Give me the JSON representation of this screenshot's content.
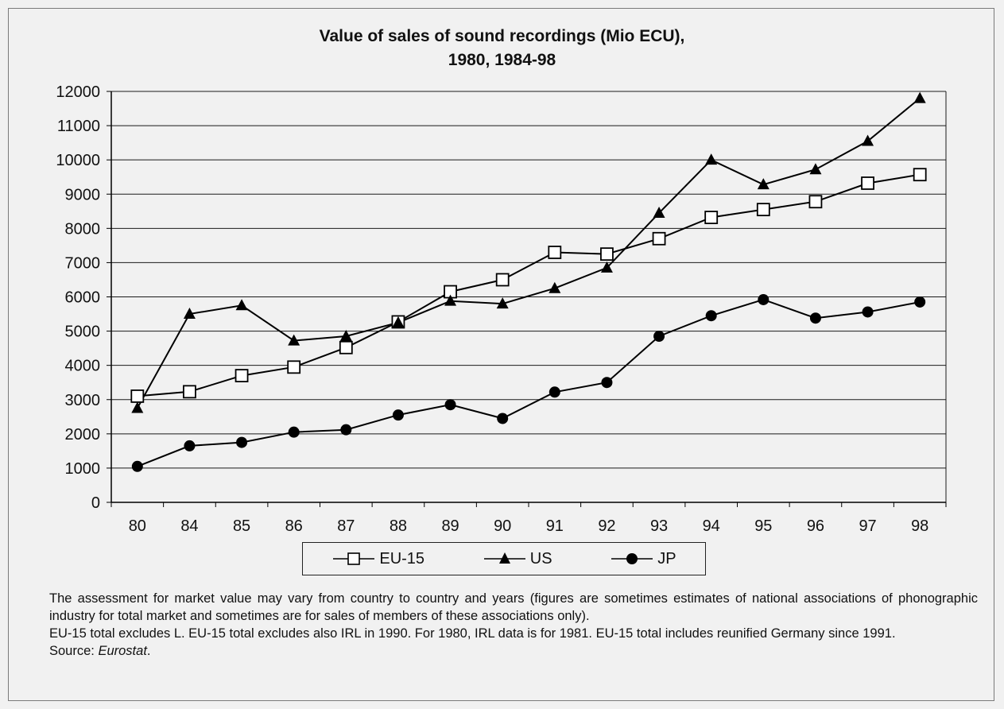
{
  "chart_data": {
    "type": "line",
    "title_lines": [
      "Value of sales of sound recordings (Mio ECU),",
      "1980, 1984-98"
    ],
    "xlabel": "",
    "ylabel": "",
    "categories": [
      "80",
      "84",
      "85",
      "86",
      "87",
      "88",
      "89",
      "90",
      "91",
      "92",
      "93",
      "94",
      "95",
      "96",
      "97",
      "98"
    ],
    "y_ticks": [
      "0",
      "1000",
      "2000",
      "3000",
      "4000",
      "5000",
      "6000",
      "7000",
      "8000",
      "9000",
      "10000",
      "11000",
      "12000"
    ],
    "ylim": [
      0,
      12000
    ],
    "grid": true,
    "legend_position": "bottom",
    "series": [
      {
        "name": "EU-15",
        "marker": "square-open",
        "color": "#000000",
        "values": [
          3100,
          3230,
          3700,
          3950,
          4520,
          5270,
          6150,
          6500,
          7300,
          7250,
          7700,
          8320,
          8550,
          8780,
          9320,
          9570
        ]
      },
      {
        "name": "US",
        "marker": "triangle",
        "color": "#000000",
        "values": [
          2750,
          5500,
          5750,
          4720,
          4850,
          5250,
          5880,
          5800,
          6250,
          6850,
          8450,
          10000,
          9280,
          9720,
          10550,
          11800
        ]
      },
      {
        "name": "JP",
        "marker": "circle",
        "color": "#000000",
        "values": [
          1050,
          1650,
          1750,
          2050,
          2120,
          2550,
          2850,
          2450,
          3220,
          3500,
          4850,
          5450,
          5920,
          5380,
          5560,
          5850
        ]
      }
    ]
  },
  "note": {
    "line1": "The assessment for market value may vary from country to country and years (figures are sometimes estimates of national associations of phonographic industry for total market and sometimes are for sales of members of these associations only).",
    "line2": "EU-15 total excludes L. EU-15 total excludes also IRL in 1990. For 1980, IRL data is for 1981. EU-15 total includes reunified Germany since 1991.",
    "source_label": "Source: ",
    "source_name": "Eurostat",
    "source_end": "."
  }
}
